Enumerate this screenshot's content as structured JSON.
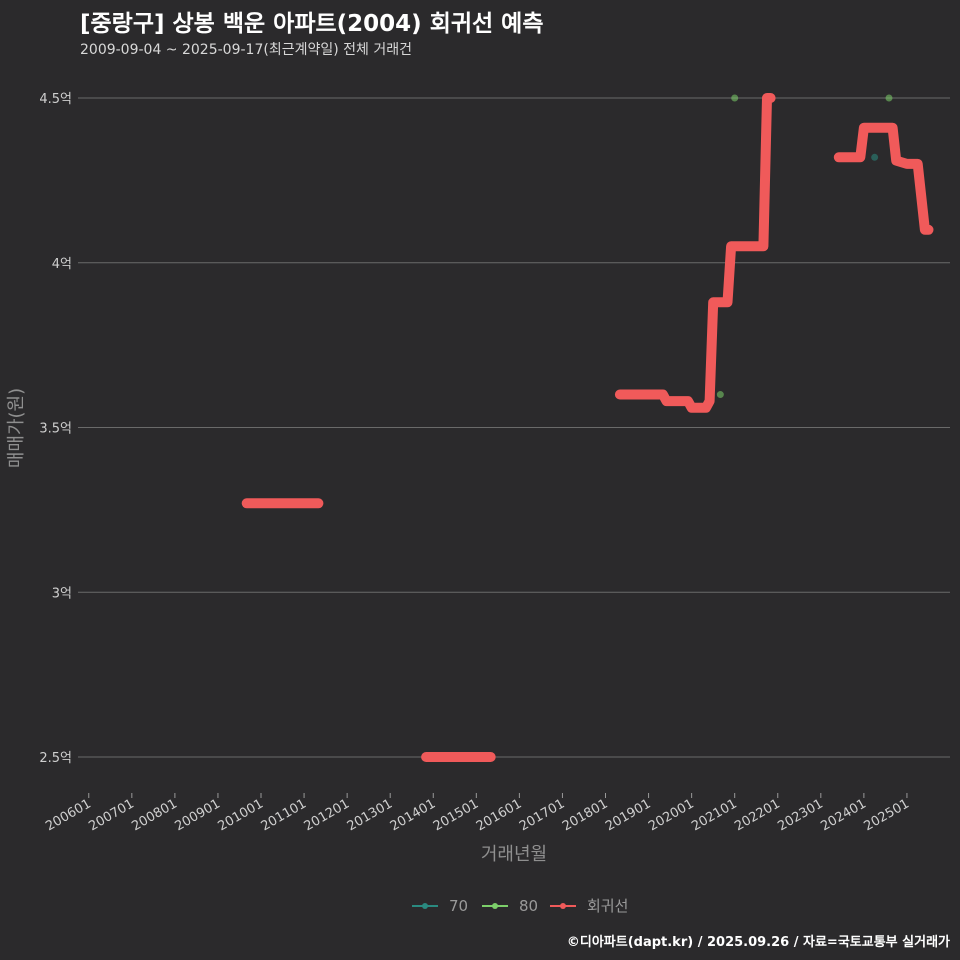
{
  "header": {
    "title": "[중랑구] 상봉 백운 아파트(2004) 회귀선 예측",
    "subtitle": "2009-09-04 ~ 2025-09-17(최근계약일) 전체 거래건"
  },
  "caption": "©디아파트(dapt.kr) / 2025.09.26 / 자료=국토교통부 실거래가",
  "colors": {
    "background": "#2b2a2c",
    "grid": "#6a6a6a",
    "series_70": "#2a8a80",
    "series_80": "#7ccf6a",
    "regression": "#f05a5a"
  },
  "chart_data": {
    "type": "line",
    "title": "[중랑구] 상봉 백운 아파트(2004) 회귀선 예측",
    "xlabel": "거래년월",
    "ylabel": "매매가(원)",
    "xlim": [
      "2005-10",
      "2026-01"
    ],
    "ylim": [
      2.35,
      4.6
    ],
    "x_ticks": [
      "200601",
      "200701",
      "200801",
      "200901",
      "201001",
      "201101",
      "201201",
      "201301",
      "201401",
      "201501",
      "201601",
      "201701",
      "201801",
      "201901",
      "202001",
      "202101",
      "202201",
      "202301",
      "202401",
      "202501"
    ],
    "y_ticks": [
      {
        "value": 2.5,
        "label": "2.5억"
      },
      {
        "value": 3.0,
        "label": "3억"
      },
      {
        "value": 3.5,
        "label": "3.5억"
      },
      {
        "value": 4.0,
        "label": "4억"
      },
      {
        "value": 4.5,
        "label": "4.5억"
      }
    ],
    "legend": {
      "position": "bottom",
      "entries": [
        "70",
        "80",
        "회귀선"
      ]
    },
    "series": [
      {
        "name": "70",
        "kind": "scatter",
        "points": [
          {
            "x": "2024-04",
            "y": 4.32
          }
        ]
      },
      {
        "name": "80",
        "kind": "scatter",
        "points": [
          {
            "x": "2020-09",
            "y": 3.6
          },
          {
            "x": "2021-01",
            "y": 4.5
          },
          {
            "x": "2024-08",
            "y": 4.5
          }
        ]
      },
      {
        "name": "회귀선",
        "kind": "line",
        "segments": [
          [
            {
              "x": "2009-09",
              "y": 3.27
            },
            {
              "x": "2011-05",
              "y": 3.27
            }
          ],
          [
            {
              "x": "2013-11",
              "y": 2.5
            },
            {
              "x": "2015-05",
              "y": 2.5
            }
          ],
          [
            {
              "x": "2018-05",
              "y": 3.6
            },
            {
              "x": "2019-05",
              "y": 3.6
            },
            {
              "x": "2019-06",
              "y": 3.58
            },
            {
              "x": "2019-12",
              "y": 3.58
            },
            {
              "x": "2020-01",
              "y": 3.56
            },
            {
              "x": "2020-05",
              "y": 3.56
            },
            {
              "x": "2020-06",
              "y": 3.58
            },
            {
              "x": "2020-07",
              "y": 3.88
            },
            {
              "x": "2020-11",
              "y": 3.88
            },
            {
              "x": "2020-12",
              "y": 4.05
            },
            {
              "x": "2021-09",
              "y": 4.05
            },
            {
              "x": "2021-10",
              "y": 4.5
            },
            {
              "x": "2021-11",
              "y": 4.5
            }
          ],
          [
            {
              "x": "2023-06",
              "y": 4.32
            },
            {
              "x": "2023-12",
              "y": 4.32
            },
            {
              "x": "2024-01",
              "y": 4.41
            },
            {
              "x": "2024-09",
              "y": 4.41
            },
            {
              "x": "2024-10",
              "y": 4.31
            },
            {
              "x": "2025-01",
              "y": 4.3
            },
            {
              "x": "2025-04",
              "y": 4.3
            },
            {
              "x": "2025-06",
              "y": 4.1
            },
            {
              "x": "2025-07",
              "y": 4.1
            }
          ]
        ]
      }
    ]
  }
}
